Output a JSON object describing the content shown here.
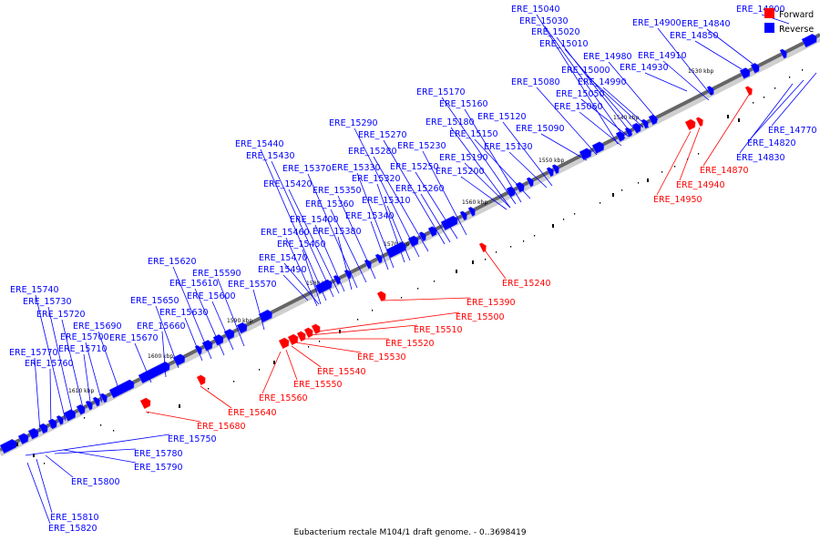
{
  "caption": "Eubacterium rectale M104/1 draft genome. - 0..3698419",
  "legend": [
    {
      "label": "Forward",
      "color": "#ff0000"
    },
    {
      "label": "Reverse",
      "color": "#0000ff"
    }
  ],
  "colors": {
    "forward": "#ff0000",
    "reverse": "#0000ff",
    "backbone": "#666666"
  },
  "kbp_ticks": [
    "1540 kbp",
    "1550 kbp",
    "1560 kbp",
    "1570 kbp",
    "1580 kbp",
    "1590 kbp",
    "1600 kbp",
    "1610 kbp",
    "1530 kbp"
  ],
  "labels": {
    "ERE_14800": "ERE_14800",
    "ERE_14840": "ERE_14840",
    "ERE_14850": "ERE_14850",
    "ERE_14900": "ERE_14900",
    "ERE_14910": "ERE_14910",
    "ERE_14930": "ERE_14930",
    "ERE_14980": "ERE_14980",
    "ERE_14990": "ERE_14990",
    "ERE_15000": "ERE_15000",
    "ERE_15010": "ERE_15010",
    "ERE_15020": "ERE_15020",
    "ERE_15030": "ERE_15030",
    "ERE_15040": "ERE_15040",
    "ERE_15050": "ERE_15050",
    "ERE_15060": "ERE_15060",
    "ERE_15080": "ERE_15080",
    "ERE_15090": "ERE_15090",
    "ERE_15120": "ERE_15120",
    "ERE_15130": "ERE_15130",
    "ERE_15150": "ERE_15150",
    "ERE_15160": "ERE_15160",
    "ERE_15170": "ERE_15170",
    "ERE_15180": "ERE_15180",
    "ERE_15190": "ERE_15190",
    "ERE_15200": "ERE_15200",
    "ERE_15230": "ERE_15230",
    "ERE_15250": "ERE_15250",
    "ERE_15260": "ERE_15260",
    "ERE_15270": "ERE_15270",
    "ERE_15280": "ERE_15280",
    "ERE_15290": "ERE_15290",
    "ERE_15310": "ERE_15310",
    "ERE_15320": "ERE_15320",
    "ERE_15330": "ERE_15330",
    "ERE_15340": "ERE_15340",
    "ERE_15350": "ERE_15350",
    "ERE_15360": "ERE_15360",
    "ERE_15370": "ERE_15370",
    "ERE_15380": "ERE_15380",
    "ERE_15400": "ERE_15400",
    "ERE_15420": "ERE_15420",
    "ERE_15430": "ERE_15430",
    "ERE_15440": "ERE_15440",
    "ERE_15450": "ERE_15450",
    "ERE_15460": "ERE_15460",
    "ERE_15470": "ERE_15470",
    "ERE_15490": "ERE_15490",
    "ERE_15570": "ERE_15570",
    "ERE_15590": "ERE_15590",
    "ERE_15600": "ERE_15600",
    "ERE_15610": "ERE_15610",
    "ERE_15620": "ERE_15620",
    "ERE_15630": "ERE_15630",
    "ERE_15650": "ERE_15650",
    "ERE_15660": "ERE_15660",
    "ERE_15670": "ERE_15670",
    "ERE_15690": "ERE_15690",
    "ERE_15700": "ERE_15700",
    "ERE_15710": "ERE_15710",
    "ERE_15720": "ERE_15720",
    "ERE_15730": "ERE_15730",
    "ERE_15740": "ERE_15740",
    "ERE_15760": "ERE_15760",
    "ERE_15770": "ERE_15770",
    "ERE_14770": "ERE_14770",
    "ERE_14820": "ERE_14820",
    "ERE_14830": "ERE_14830",
    "ERE_14870": "ERE_14870",
    "ERE_14940": "ERE_14940",
    "ERE_14950": "ERE_14950",
    "ERE_15240": "ERE_15240",
    "ERE_15390": "ERE_15390",
    "ERE_15500": "ERE_15500",
    "ERE_15510": "ERE_15510",
    "ERE_15520": "ERE_15520",
    "ERE_15530": "ERE_15530",
    "ERE_15540": "ERE_15540",
    "ERE_15550": "ERE_15550",
    "ERE_15560": "ERE_15560",
    "ERE_15640": "ERE_15640",
    "ERE_15680": "ERE_15680",
    "ERE_15750": "ERE_15750",
    "ERE_15780": "ERE_15780",
    "ERE_15790": "ERE_15790",
    "ERE_15800": "ERE_15800",
    "ERE_15810": "ERE_15810",
    "ERE_15820": "ERE_15820"
  }
}
